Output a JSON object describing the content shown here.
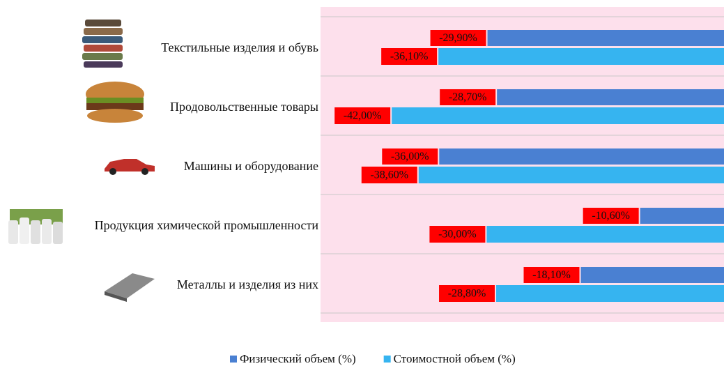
{
  "chart_data": {
    "type": "bar",
    "orientation": "horizontal",
    "categories": [
      "Текстильные изделия и обувь",
      "Продовольственные товары",
      "Машины и оборудование",
      "Продукция химической промышленности",
      "Металлы и изделия из них"
    ],
    "series": [
      {
        "name": "Физический объем (%)",
        "color": "#4a80d2",
        "values": [
          -29.9,
          -28.7,
          -36.0,
          -10.6,
          -18.1
        ],
        "value_labels": [
          "-29,90%",
          "-28,70%",
          "-36,00%",
          "-10,60%",
          "-18,10%"
        ]
      },
      {
        "name": "Стоимостной объем (%)",
        "color": "#36b4f0",
        "values": [
          -36.1,
          -42.0,
          -38.6,
          -30.0,
          -28.8
        ],
        "value_labels": [
          "-36,10%",
          "-42,00%",
          "-38,60%",
          "-30,00%",
          "-28,80%"
        ]
      }
    ],
    "xlim": [
      -51,
      0
    ],
    "label_color": "#ff0000",
    "legend": "bottom"
  }
}
